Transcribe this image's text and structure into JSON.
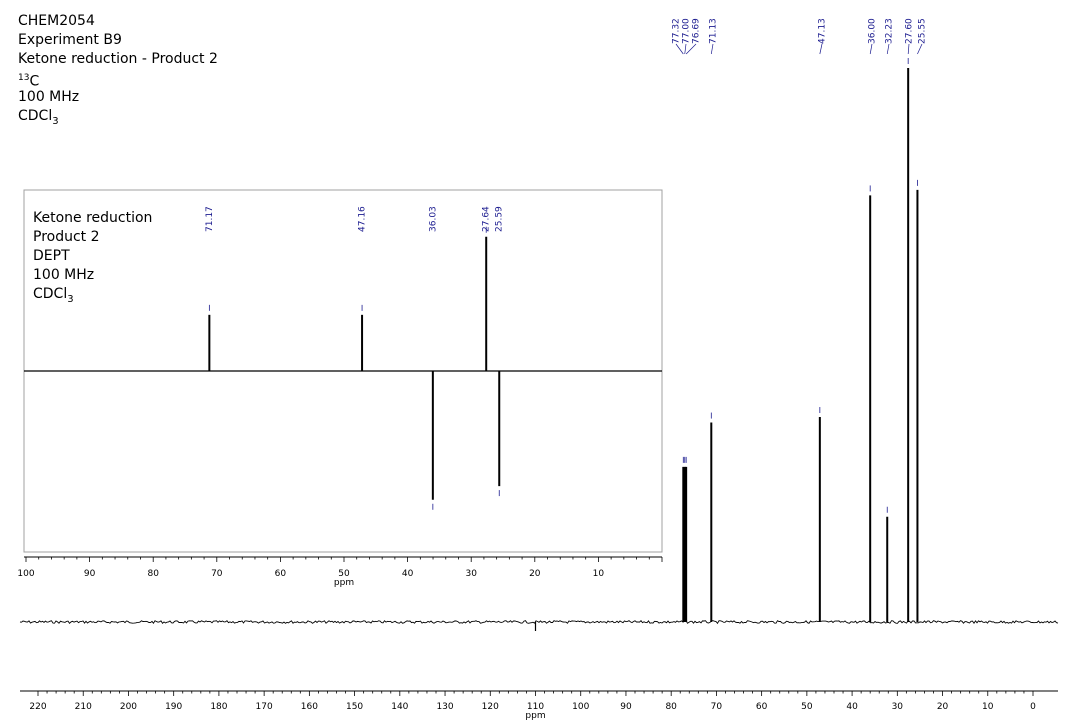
{
  "header": {
    "line1": "CHEM2054",
    "line2": "Experiment B9",
    "line3": "Ketone reduction - Product 2",
    "nucleus_mass": "13",
    "nucleus_symbol": "C",
    "line5": "100 MHz",
    "solvent_main": "CDCl",
    "solvent_sub": "3"
  },
  "inset_header": {
    "line1": "Ketone reduction",
    "line2": "Product 2",
    "line3": "DEPT",
    "line4": "100 MHz",
    "solvent_main": "CDCl",
    "solvent_sub": "3"
  },
  "colors": {
    "trace": "#000000",
    "peak_label": "#1b1b8f",
    "frame": "#a0a0a0"
  },
  "chart_data": [
    {
      "type": "line",
      "xlabel": "ppm",
      "xlim": [
        225,
        -5
      ],
      "x_reversed": true,
      "ticks": [
        220,
        210,
        200,
        190,
        180,
        170,
        160,
        150,
        140,
        130,
        120,
        110,
        100,
        90,
        80,
        70,
        60,
        50,
        40,
        30,
        20,
        10,
        0
      ],
      "ylim": [
        -0.05,
        1.0
      ],
      "grid": false,
      "peaks": [
        {
          "ppm": 77.32,
          "intensity": 0.28
        },
        {
          "ppm": 77.0,
          "intensity": 0.28
        },
        {
          "ppm": 76.69,
          "intensity": 0.28
        },
        {
          "ppm": 71.13,
          "intensity": 0.36
        },
        {
          "ppm": 47.13,
          "intensity": 0.37
        },
        {
          "ppm": 36.0,
          "intensity": 0.77
        },
        {
          "ppm": 32.23,
          "intensity": 0.19
        },
        {
          "ppm": 27.6,
          "intensity": 1.0
        },
        {
          "ppm": 25.55,
          "intensity": 0.78
        }
      ],
      "peak_labels": [
        "77.32",
        "77.00",
        "76.69",
        "71.13",
        "47.13",
        "36.00",
        "32.23",
        "27.60",
        "25.55"
      ]
    },
    {
      "type": "line",
      "xlabel": "ppm",
      "xlim": [
        100,
        0
      ],
      "x_reversed": true,
      "ticks": [
        100,
        90,
        80,
        70,
        60,
        50,
        40,
        30,
        20,
        10
      ],
      "ylim": [
        -1.0,
        1.0
      ],
      "grid": false,
      "peaks": [
        {
          "ppm": 71.17,
          "intensity": 0.41
        },
        {
          "ppm": 47.16,
          "intensity": 0.41
        },
        {
          "ppm": 36.03,
          "intensity": -0.94
        },
        {
          "ppm": 27.64,
          "intensity": 0.98
        },
        {
          "ppm": 25.59,
          "intensity": -0.84
        }
      ],
      "peak_labels": [
        "71.17",
        "47.16",
        "36.03",
        "27.64",
        "25.59"
      ]
    }
  ]
}
